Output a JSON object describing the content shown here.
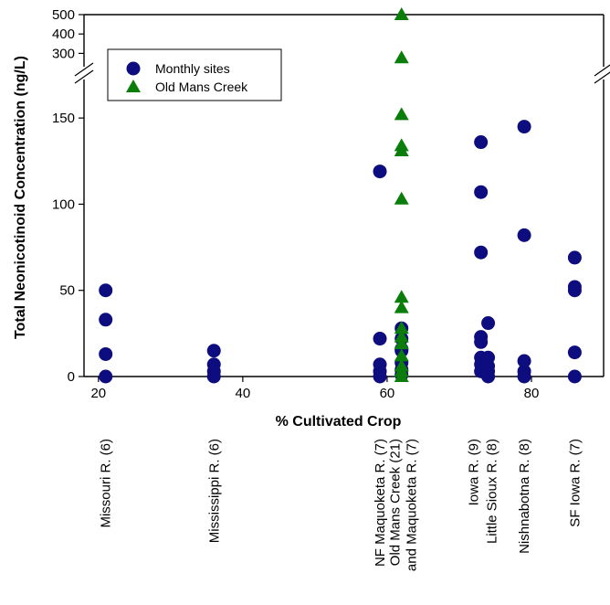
{
  "chart_data": {
    "type": "scatter",
    "xlabel": "% Cultivated Crop",
    "ylabel": "Total Neonicotinoid Concentration (ng/L)",
    "xlim": [
      18,
      90
    ],
    "x_ticks": [
      20,
      40,
      60,
      80
    ],
    "y_lower_range": [
      0,
      175
    ],
    "y_lower_ticks": [
      0,
      50,
      100,
      150
    ],
    "y_upper_range": [
      250,
      500
    ],
    "y_upper_ticks": [
      300,
      400,
      500
    ],
    "axis_break": "between 175 and 250",
    "legend": {
      "placement": "top-left",
      "entries": [
        "Monthly sites",
        "Old Mans Creek"
      ]
    },
    "colors": {
      "monthly": "#0d0d80",
      "old_mans_creek": "#0a7d0a"
    },
    "series": [
      {
        "name": "Monthly sites",
        "marker": "circle",
        "points": [
          [
            21,
            0
          ],
          [
            21,
            13
          ],
          [
            21,
            33
          ],
          [
            21,
            50
          ],
          [
            36,
            0
          ],
          [
            36,
            3
          ],
          [
            36,
            7
          ],
          [
            36,
            15
          ],
          [
            59,
            0
          ],
          [
            59,
            3
          ],
          [
            59,
            7
          ],
          [
            59,
            22
          ],
          [
            59,
            119
          ],
          [
            62,
            1
          ],
          [
            62,
            4
          ],
          [
            62,
            8
          ],
          [
            62,
            15
          ],
          [
            62,
            16
          ],
          [
            62,
            22
          ],
          [
            62,
            28
          ],
          [
            73,
            3
          ],
          [
            73,
            7
          ],
          [
            73,
            11
          ],
          [
            73,
            20
          ],
          [
            73,
            23
          ],
          [
            73,
            72
          ],
          [
            73,
            107
          ],
          [
            73,
            136
          ],
          [
            74,
            0
          ],
          [
            74,
            3
          ],
          [
            74,
            6
          ],
          [
            74,
            11
          ],
          [
            74,
            31
          ],
          [
            79,
            0
          ],
          [
            79,
            3
          ],
          [
            79,
            9
          ],
          [
            79,
            82
          ],
          [
            79,
            145
          ],
          [
            86,
            0
          ],
          [
            86,
            14
          ],
          [
            86,
            50
          ],
          [
            86,
            52
          ],
          [
            86,
            69
          ]
        ]
      },
      {
        "name": "Old Mans Creek",
        "marker": "triangle",
        "points": [
          [
            62,
            0
          ],
          [
            62,
            3
          ],
          [
            62,
            6
          ],
          [
            62,
            12
          ],
          [
            62,
            19
          ],
          [
            62,
            23
          ],
          [
            62,
            28
          ],
          [
            62,
            40
          ],
          [
            62,
            46
          ],
          [
            62,
            103
          ],
          [
            62,
            131
          ],
          [
            62,
            134
          ],
          [
            62,
            152
          ],
          [
            62,
            277
          ],
          [
            62,
            500
          ]
        ]
      }
    ],
    "site_labels": [
      {
        "text": "Missouri R. (6)",
        "x": 21
      },
      {
        "text": "Mississippi R. (6)",
        "x": 36
      },
      {
        "text": "NF Maquoketa R. (7)",
        "x": 59
      },
      {
        "text": "Old Mans Creek (21)",
        "x": 62
      },
      {
        "text": "and Maquoketa R. (7)",
        "x": 62
      },
      {
        "text": "Iowa R. (9)",
        "x": 73
      },
      {
        "text": "Little Sioux R. (8)",
        "x": 74
      },
      {
        "text": "Nishnabotna R. (8)",
        "x": 79
      },
      {
        "text": "SF Iowa R. (7)",
        "x": 86
      }
    ]
  }
}
